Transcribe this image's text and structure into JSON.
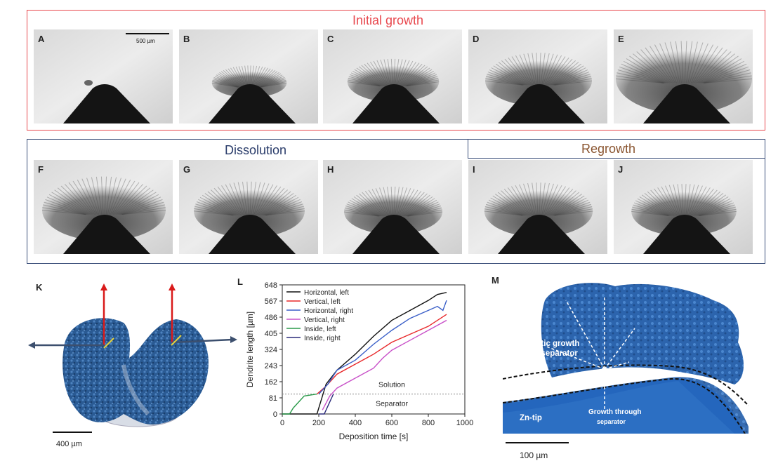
{
  "groups": {
    "initial_title": "Initial growth",
    "dissolution_title": "Dissolution",
    "regrowth_title": "Regrowth"
  },
  "panels_top": [
    {
      "letter": "A"
    },
    {
      "letter": "B"
    },
    {
      "letter": "C"
    },
    {
      "letter": "D"
    },
    {
      "letter": "E"
    }
  ],
  "panels_mid": [
    {
      "letter": "F"
    },
    {
      "letter": "G"
    },
    {
      "letter": "H"
    },
    {
      "letter": "I"
    },
    {
      "letter": "J"
    }
  ],
  "scale_top": "500 µm",
  "panel_k": {
    "letter": "K",
    "scale": "400 µm"
  },
  "panel_m": {
    "letter": "M",
    "scale": "100 µm",
    "label_dendritic_1": "Dendritic growth",
    "label_dendritic_2": "above separator",
    "label_separator": "Separator",
    "label_zntip": "Zn-tip",
    "label_through_1": "Growth through",
    "label_through_2": "separator"
  },
  "chart_data": {
    "letter": "L",
    "type": "line",
    "xlabel": "Deposition time [s]",
    "ylabel": "Dendrite length [µm]",
    "xlim": [
      0,
      1000
    ],
    "ylim": [
      0,
      648
    ],
    "xticks": [
      0,
      200,
      400,
      600,
      800,
      1000
    ],
    "yticks": [
      0,
      81,
      162,
      243,
      324,
      405,
      486,
      567,
      648
    ],
    "annotations": [
      {
        "text": "Solution",
        "x": 600,
        "y": 135
      },
      {
        "text": "Separator",
        "x": 600,
        "y": 40
      }
    ],
    "reference_line_y": 100,
    "series": [
      {
        "name": "Horizontal,   left",
        "color": "#111111",
        "x": [
          0,
          190,
          240,
          300,
          400,
          500,
          600,
          700,
          800,
          850,
          900
        ],
        "y": [
          0,
          0,
          150,
          220,
          300,
          390,
          470,
          520,
          570,
          600,
          610
        ]
      },
      {
        "name": "Vertical,       left",
        "color": "#e8282a",
        "x": [
          190,
          240,
          300,
          400,
          500,
          600,
          700,
          800,
          900
        ],
        "y": [
          100,
          140,
          200,
          250,
          300,
          360,
          400,
          440,
          500
        ]
      },
      {
        "name": "Horizontal, right",
        "color": "#3a5fc8",
        "x": [
          200,
          250,
          300,
          400,
          500,
          600,
          700,
          800,
          850,
          880,
          900
        ],
        "y": [
          100,
          150,
          220,
          270,
          350,
          420,
          480,
          520,
          540,
          520,
          570
        ]
      },
      {
        "name": "Vertical,       right",
        "color": "#c850c8",
        "x": [
          220,
          260,
          300,
          400,
          500,
          550,
          600,
          700,
          800,
          900
        ],
        "y": [
          20,
          90,
          130,
          180,
          230,
          280,
          320,
          370,
          420,
          470
        ]
      },
      {
        "name": "Inside,          left",
        "color": "#2a9a4a",
        "x": [
          0,
          40,
          60,
          120,
          190
        ],
        "y": [
          0,
          0,
          30,
          90,
          100
        ]
      },
      {
        "name": "Inside,          right",
        "color": "#2a2a7a",
        "x": [
          200,
          230,
          260,
          280
        ],
        "y": [
          0,
          0,
          60,
          100
        ]
      }
    ]
  }
}
